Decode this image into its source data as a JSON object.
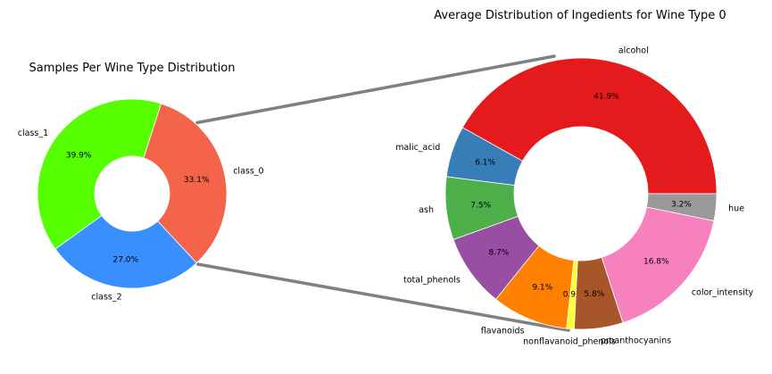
{
  "chart_data": [
    {
      "type": "pie",
      "style": "donut",
      "title": "Samples Per Wine Type Distribution",
      "slices": [
        {
          "label": "class_0",
          "value": 33.1,
          "display": "33.1%",
          "color": "#f4644a"
        },
        {
          "label": "class_1",
          "value": 39.9,
          "display": "39.9%",
          "color": "#55ff00"
        },
        {
          "label": "class_2",
          "value": 27.0,
          "display": "27.0%",
          "color": "#3a8fff"
        }
      ]
    },
    {
      "type": "pie",
      "style": "donut",
      "title": "Average Distribution of Ingedients for Wine Type 0",
      "slices": [
        {
          "label": "alcohol",
          "value": 41.9,
          "display": "41.9%",
          "color": "#e41a1c"
        },
        {
          "label": "malic_acid",
          "value": 6.1,
          "display": "6.1%",
          "color": "#377eb8"
        },
        {
          "label": "ash",
          "value": 7.5,
          "display": "7.5%",
          "color": "#4daf4a"
        },
        {
          "label": "total_phenols",
          "value": 8.7,
          "display": "8.7%",
          "color": "#984ea3"
        },
        {
          "label": "flavanoids",
          "value": 9.1,
          "display": "9.1%",
          "color": "#ff7f00"
        },
        {
          "label": "nonflavanoid_phenols",
          "value": 0.9,
          "display": "0.9%",
          "color": "#ffff33"
        },
        {
          "label": "proanthocyanins",
          "value": 5.8,
          "display": "5.8%",
          "color": "#a65628"
        },
        {
          "label": "color_intensity",
          "value": 16.8,
          "display": "16.8%",
          "color": "#f781bf"
        },
        {
          "label": "hue",
          "value": 3.2,
          "display": "3.2%",
          "color": "#999999"
        }
      ]
    }
  ],
  "connector_color": "#808080"
}
